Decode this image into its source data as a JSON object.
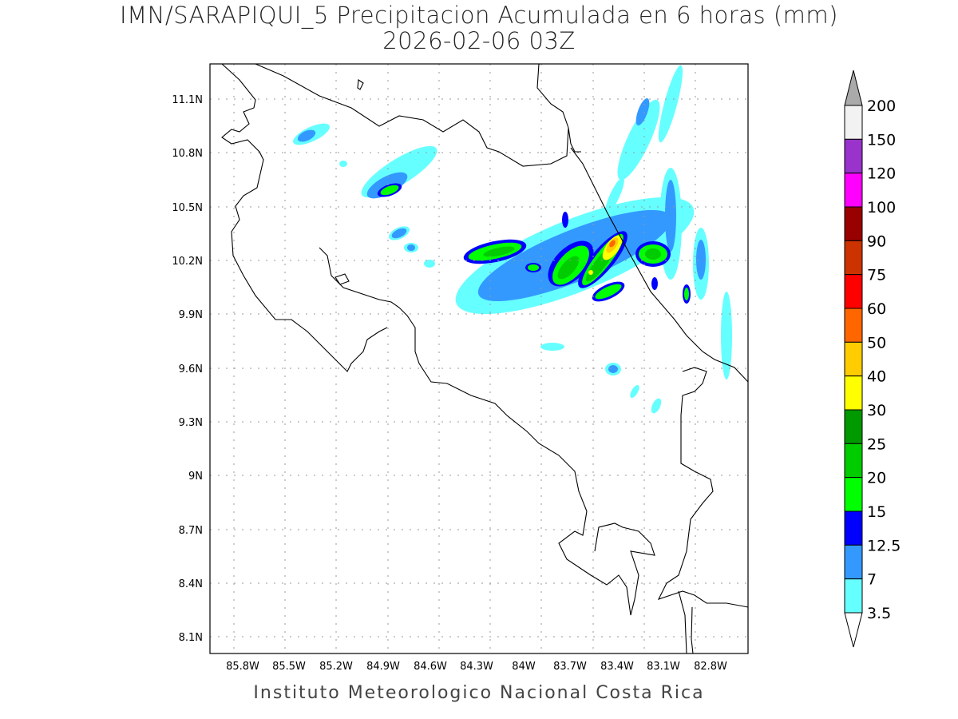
{
  "title": {
    "line1": "IMN/SARAPIQUI_5 Precipitacion Acumulada en 6 horas (mm)",
    "line2": "2026-02-06 03Z"
  },
  "footer": "Instituto Meteorologico Nacional Costa Rica",
  "axes": {
    "lon_ticks": [
      "85.8W",
      "85.5W",
      "85.2W",
      "84.9W",
      "84.6W",
      "84.3W",
      "84W",
      "83.7W",
      "83.4W",
      "83.1W",
      "82.8W"
    ],
    "lat_ticks": [
      "11.1N",
      "10.8N",
      "10.5N",
      "10.2N",
      "9.9N",
      "9.6N",
      "9.3N",
      "9N",
      "8.7N",
      "8.4N",
      "8.1N"
    ]
  },
  "colorbar": {
    "levels": [
      "3.5",
      "7",
      "12.5",
      "15",
      "20",
      "25",
      "30",
      "40",
      "50",
      "60",
      "75",
      "90",
      "100",
      "120",
      "150",
      "200"
    ],
    "colors": [
      "#66ffff",
      "#3399ff",
      "#0000ff",
      "#00ff00",
      "#00cc00",
      "#009900",
      "#ffff00",
      "#ffcc00",
      "#ff6600",
      "#ff0000",
      "#cc3300",
      "#990000",
      "#ff00ff",
      "#9933cc",
      "#f2f2f2"
    ],
    "over_color": "#aaaaaa",
    "under_color": "#ffffff"
  }
}
